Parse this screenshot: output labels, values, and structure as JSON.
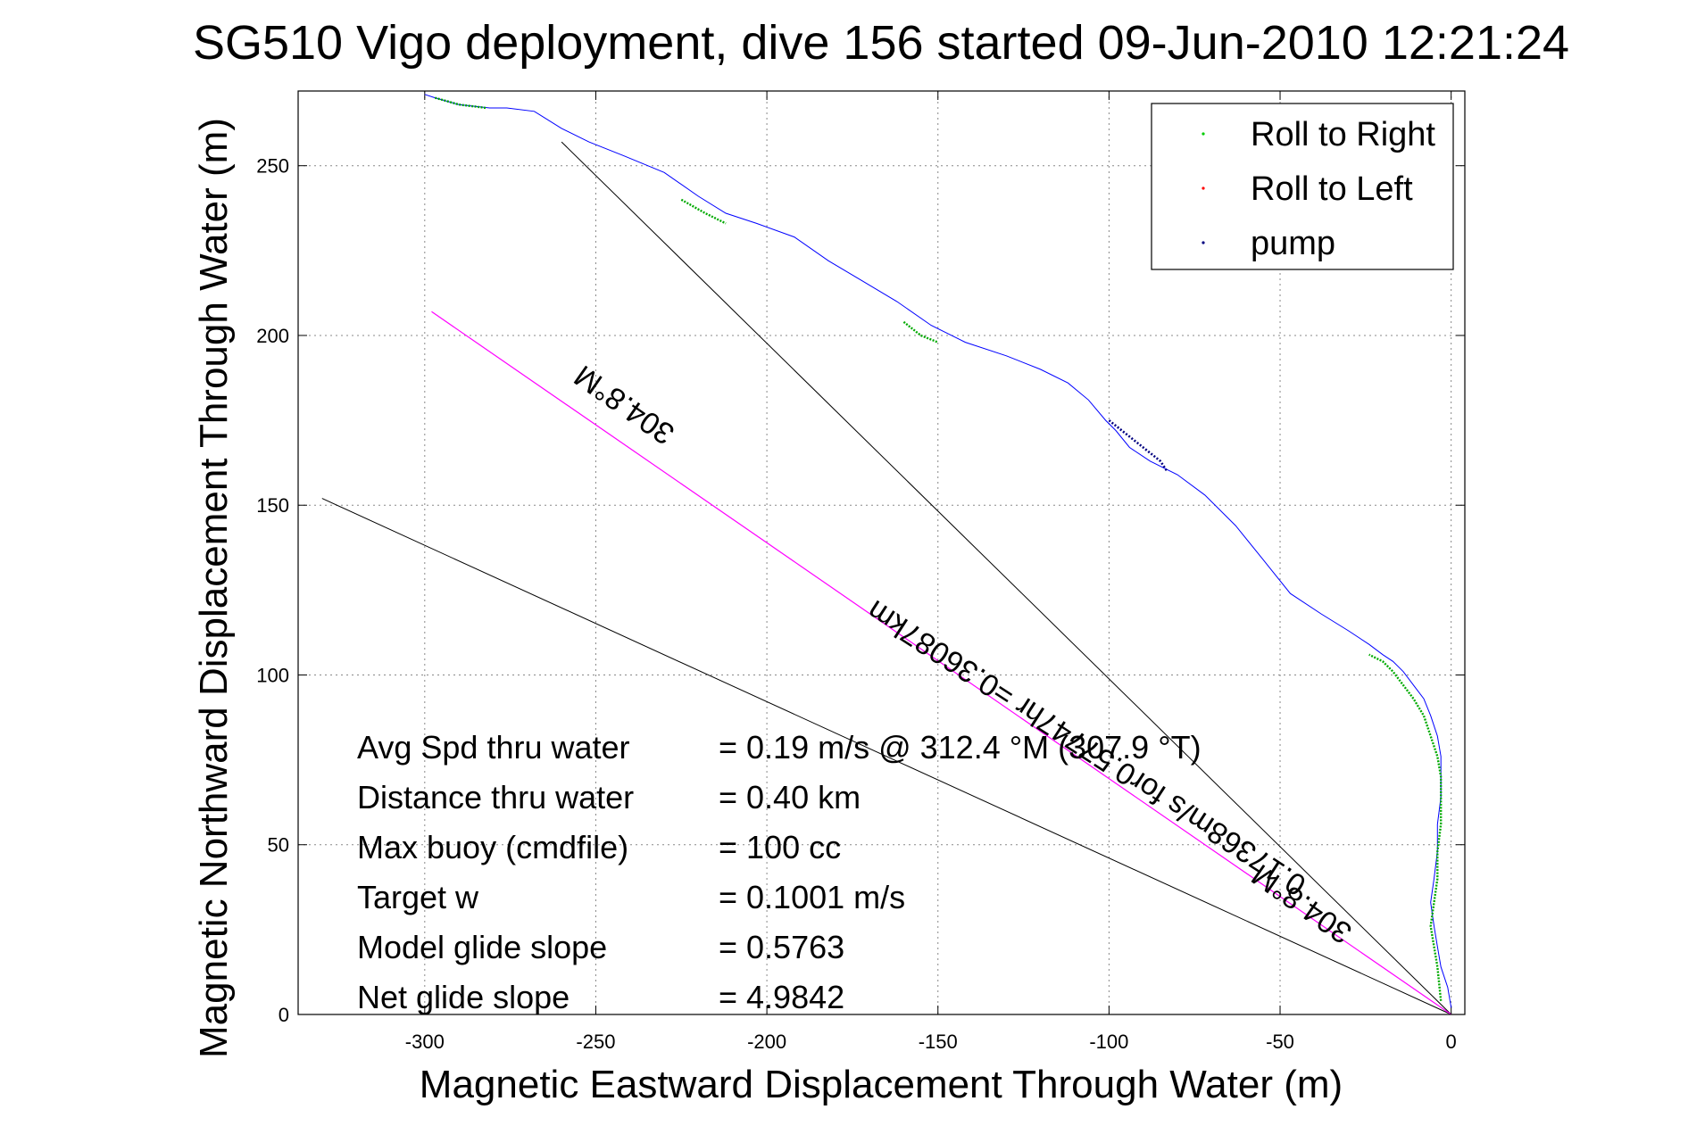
{
  "chart_data": {
    "type": "line",
    "title": "SG510 Vigo deployment, dive 156 started 09-Jun-2010 12:21:24",
    "xlabel": "Magnetic Eastward Displacement Through Water (m)",
    "ylabel": "Magnetic Northward Displacement Through Water (m)",
    "xlim": [
      -337,
      4
    ],
    "ylim": [
      0,
      272
    ],
    "xticks": [
      -300,
      -250,
      -200,
      -150,
      -100,
      -50,
      0
    ],
    "yticks": [
      0,
      50,
      100,
      150,
      200,
      250
    ],
    "xtick_labels": [
      "-300",
      "-250",
      "-200",
      "-150",
      "-100",
      "-50",
      "0"
    ],
    "ytick_labels": [
      "0",
      "50",
      "100",
      "150",
      "200",
      "250"
    ],
    "grid": true,
    "legend_position": "top-right",
    "legend": [
      {
        "label": "Roll to Right",
        "color": "#00cc00"
      },
      {
        "label": "Roll to Left",
        "color": "#ff0000"
      },
      {
        "label": "pump",
        "color": "#000080"
      }
    ],
    "colors": {
      "track": "#0000ff",
      "roll_right": "#00aa00",
      "pump": "#000080",
      "reference": "#000000",
      "heading_line": "#ff00ff"
    },
    "track": {
      "x": [
        0,
        -1,
        -3,
        -4,
        -5,
        -6,
        -5,
        -4,
        -4,
        -3,
        -3,
        -3,
        -4,
        -6,
        -8,
        -11,
        -14,
        -17,
        -20,
        -24,
        -30,
        -38,
        -47,
        -55,
        -63,
        -72,
        -80,
        -88,
        -94,
        -98,
        -101,
        -106,
        -112,
        -120,
        -130,
        -142,
        -152,
        -162,
        -172,
        -182,
        -192,
        -203,
        -212,
        -220,
        -230,
        -242,
        -252,
        -260,
        -268,
        -276,
        -281,
        -290,
        -297,
        -300
      ],
      "y": [
        2,
        8,
        14,
        20,
        26,
        33,
        40,
        48,
        56,
        64,
        70,
        76,
        82,
        88,
        93,
        97,
        101,
        104,
        106,
        109,
        113,
        118,
        124,
        134,
        144,
        153,
        159,
        163,
        167,
        172,
        175,
        181,
        186,
        190,
        194,
        198,
        203,
        210,
        216,
        222,
        229,
        233,
        236,
        241,
        248,
        253,
        257,
        261,
        266,
        267,
        267,
        268,
        270,
        271
      ]
    },
    "roll_right_segments": [
      {
        "x": [
          -3,
          -4,
          -6,
          -5,
          -4,
          -4,
          -3,
          -3,
          -3,
          -4,
          -6,
          -8,
          -11,
          -14,
          -17,
          -20,
          -24
        ],
        "y": [
          4,
          14,
          26,
          33,
          40,
          48,
          56,
          64,
          70,
          76,
          82,
          88,
          93,
          97,
          101,
          104,
          106
        ]
      },
      {
        "x": [
          -160,
          -155,
          -150
        ],
        "y": [
          204,
          200,
          198
        ]
      },
      {
        "x": [
          -225,
          -218,
          -212
        ],
        "y": [
          240,
          236,
          233
        ]
      },
      {
        "x": [
          -297,
          -290,
          -282
        ],
        "y": [
          270,
          268,
          267
        ]
      }
    ],
    "pump_segment": {
      "x": [
        -100,
        -95,
        -90,
        -85,
        -83
      ],
      "y": [
        175,
        171,
        167,
        163,
        160
      ]
    },
    "reference_lines": [
      {
        "x": [
          0,
          -330
        ],
        "y": [
          0,
          152
        ]
      },
      {
        "x": [
          0,
          -260
        ],
        "y": [
          0,
          257
        ]
      }
    ],
    "heading_line": {
      "x": [
        0,
        -298
      ],
      "y": [
        0,
        207
      ]
    },
    "rotated_labels": [
      {
        "text": "304.8°M",
        "x": -240,
        "y": 182,
        "angle": 215
      },
      {
        "text": "304.8°M",
        "x": -42,
        "y": 35,
        "angle": 215
      },
      {
        "text": "0.17368m/s for0.57747hr =0.36087km",
        "x": -105,
        "y": 81,
        "angle": 213
      }
    ],
    "stats": [
      {
        "label": "Avg Spd thru water",
        "value": "=  0.19 m/s @ 312.4 °M (307.9 °T)"
      },
      {
        "label": "Distance thru water",
        "value": "=  0.40 km"
      },
      {
        "label": "Max buoy (cmdfile)",
        "value": "= 100 cc"
      },
      {
        "label": "Target w",
        "value": "= 0.1001 m/s"
      },
      {
        "label": "Model glide slope",
        "value": "= 0.5763"
      },
      {
        "label": "Net glide slope",
        "value": "= 4.9842"
      }
    ]
  }
}
